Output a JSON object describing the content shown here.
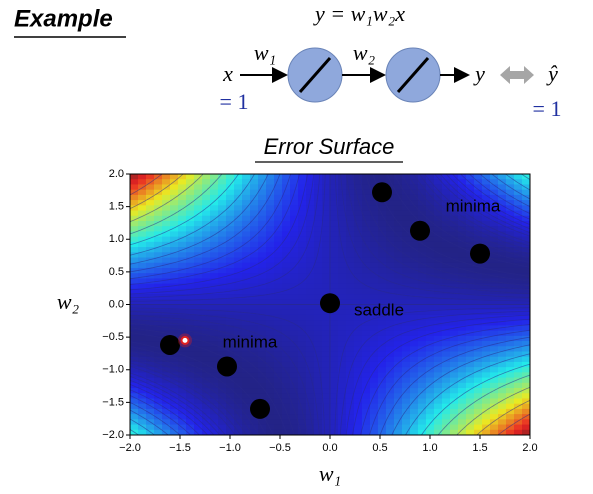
{
  "header": {
    "title": "Example"
  },
  "diagram": {
    "equation": "y = w₁w₂x",
    "input": "x",
    "weight_1": "w₁",
    "weight_2": "w₂",
    "output": "y",
    "target": "ŷ",
    "input_value": "= 1",
    "target_value": "= 1"
  },
  "chart_data": {
    "type": "scatter",
    "title": "Error Surface",
    "x_label": "w₁",
    "y_label": "w₂",
    "xlim": [
      -2,
      2
    ],
    "ylim": [
      -2,
      2
    ],
    "xticks": [
      {
        "value": -2,
        "label": "−2.0"
      },
      {
        "value": -1.5,
        "label": "−1.5"
      },
      {
        "value": -1,
        "label": "−1.0"
      },
      {
        "value": -0.5,
        "label": "−0.5"
      },
      {
        "value": 0,
        "label": "0.0"
      },
      {
        "value": 0.5,
        "label": "0.5"
      },
      {
        "value": 1,
        "label": "1.0"
      },
      {
        "value": 1.5,
        "label": "1.5"
      },
      {
        "value": 2,
        "label": "2.0"
      }
    ],
    "yticks": [
      {
        "value": -2,
        "label": "−2.0"
      },
      {
        "value": -1.5,
        "label": "−1.5"
      },
      {
        "value": -1,
        "label": "−1.0"
      },
      {
        "value": -0.5,
        "label": "−0.5"
      },
      {
        "value": 0,
        "label": "0.0"
      },
      {
        "value": 0.5,
        "label": "0.5"
      },
      {
        "value": 1,
        "label": "1.0"
      },
      {
        "value": 1.5,
        "label": "1.5"
      },
      {
        "value": 2,
        "label": "2.0"
      }
    ],
    "series": [
      {
        "color": "#000000",
        "x": [
          -1.6,
          -1.03,
          -0.7,
          0.52,
          0.9,
          1.5,
          0
        ],
        "values": [
          -0.62,
          -0.95,
          -1.6,
          1.72,
          1.13,
          0.78,
          0.02
        ]
      },
      {
        "color": "#e02020",
        "x": [
          -1.45
        ],
        "values": [
          -0.55
        ]
      }
    ],
    "annotations": [
      "minima",
      "minima",
      "saddle"
    ]
  }
}
